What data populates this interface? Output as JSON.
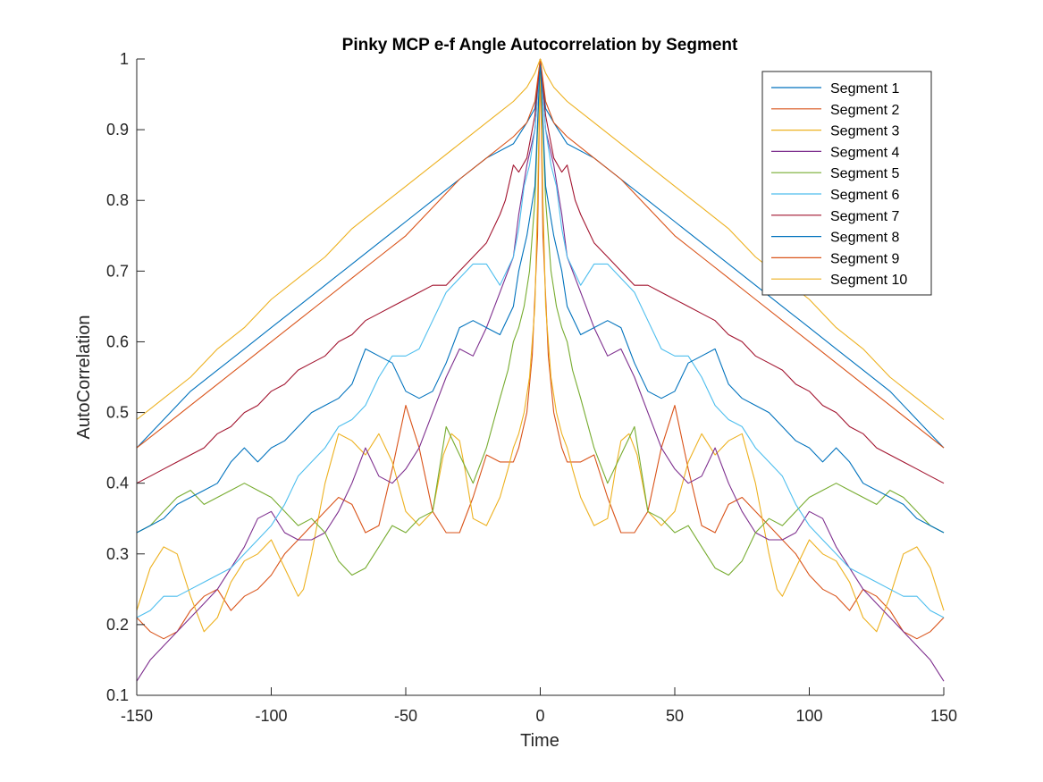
{
  "chart_data": {
    "type": "line",
    "title": "Pinky MCP e-f Angle Autocorrelation by Segment",
    "xlabel": "Time",
    "ylabel": "AutoCorrelation",
    "xlim": [
      -150,
      150
    ],
    "ylim": [
      0.1,
      1
    ],
    "xticks": [
      -150,
      -100,
      -50,
      0,
      50,
      100,
      150
    ],
    "yticks": [
      0.1,
      0.2,
      0.3,
      0.4,
      0.5,
      0.6,
      0.7,
      0.8,
      0.9,
      1
    ],
    "xtick_labels": [
      "-150",
      "-100",
      "-50",
      "0",
      "50",
      "100",
      "150"
    ],
    "ytick_labels": [
      "0.1",
      "0.2",
      "0.3",
      "0.4",
      "0.5",
      "0.6",
      "0.7",
      "0.8",
      "0.9",
      "1"
    ],
    "grid": false,
    "legend_position": "top-right",
    "symmetric_about_zero": true,
    "series": [
      {
        "name": "Segment 1",
        "color": "#0072BD",
        "x": [
          0,
          2,
          5,
          10,
          20,
          30,
          40,
          50,
          60,
          70,
          80,
          90,
          100,
          110,
          120,
          130,
          140,
          150
        ],
        "y": [
          1,
          0.93,
          0.91,
          0.88,
          0.86,
          0.83,
          0.8,
          0.77,
          0.74,
          0.71,
          0.68,
          0.65,
          0.62,
          0.59,
          0.56,
          0.53,
          0.49,
          0.45
        ]
      },
      {
        "name": "Segment 2",
        "color": "#D95319",
        "x": [
          0,
          1,
          3,
          5,
          8,
          10,
          15,
          20,
          25,
          30,
          35,
          40,
          45,
          50,
          55,
          60,
          65,
          70,
          75,
          80,
          85,
          90,
          95,
          100,
          105,
          110,
          115,
          120,
          125,
          130,
          135,
          140,
          145,
          150
        ],
        "y": [
          1,
          0.75,
          0.58,
          0.5,
          0.45,
          0.43,
          0.43,
          0.44,
          0.38,
          0.33,
          0.33,
          0.36,
          0.45,
          0.51,
          0.42,
          0.34,
          0.33,
          0.37,
          0.38,
          0.36,
          0.34,
          0.32,
          0.3,
          0.27,
          0.25,
          0.24,
          0.22,
          0.25,
          0.24,
          0.22,
          0.19,
          0.18,
          0.19,
          0.21
        ]
      },
      {
        "name": "Segment 3",
        "color": "#EDB120",
        "x": [
          0,
          1,
          2,
          4,
          6,
          8,
          10,
          12,
          15,
          20,
          25,
          28,
          30,
          33,
          36,
          40,
          45,
          50,
          55,
          60,
          65,
          70,
          75,
          80,
          85,
          88,
          90,
          95,
          100,
          105,
          110,
          115,
          120,
          125,
          130,
          135,
          140,
          145,
          150
        ],
        "y": [
          1,
          0.8,
          0.65,
          0.55,
          0.5,
          0.47,
          0.45,
          0.42,
          0.38,
          0.34,
          0.35,
          0.42,
          0.46,
          0.47,
          0.44,
          0.36,
          0.34,
          0.36,
          0.43,
          0.47,
          0.44,
          0.46,
          0.47,
          0.4,
          0.3,
          0.25,
          0.24,
          0.28,
          0.32,
          0.3,
          0.29,
          0.26,
          0.21,
          0.19,
          0.24,
          0.3,
          0.31,
          0.28,
          0.22
        ]
      },
      {
        "name": "Segment 4",
        "color": "#7E2F8E",
        "x": [
          0,
          2,
          5,
          8,
          10,
          15,
          20,
          25,
          30,
          35,
          40,
          45,
          50,
          55,
          60,
          65,
          70,
          75,
          80,
          85,
          90,
          95,
          100,
          105,
          110,
          115,
          120,
          125,
          130,
          135,
          140,
          145,
          150
        ],
        "y": [
          1,
          0.9,
          0.85,
          0.78,
          0.72,
          0.67,
          0.62,
          0.58,
          0.59,
          0.55,
          0.5,
          0.45,
          0.42,
          0.4,
          0.41,
          0.45,
          0.4,
          0.36,
          0.33,
          0.32,
          0.32,
          0.33,
          0.36,
          0.35,
          0.31,
          0.28,
          0.25,
          0.23,
          0.21,
          0.19,
          0.17,
          0.15,
          0.12
        ]
      },
      {
        "name": "Segment 5",
        "color": "#77AC30",
        "x": [
          0,
          2,
          4,
          6,
          8,
          10,
          12,
          15,
          20,
          25,
          30,
          35,
          40,
          45,
          50,
          55,
          60,
          65,
          70,
          75,
          80,
          85,
          90,
          95,
          100,
          105,
          110,
          115,
          120,
          125,
          130,
          135,
          140,
          145,
          150
        ],
        "y": [
          1,
          0.8,
          0.7,
          0.65,
          0.62,
          0.6,
          0.56,
          0.52,
          0.45,
          0.4,
          0.44,
          0.48,
          0.36,
          0.35,
          0.33,
          0.34,
          0.31,
          0.28,
          0.27,
          0.29,
          0.33,
          0.35,
          0.34,
          0.36,
          0.38,
          0.39,
          0.4,
          0.39,
          0.38,
          0.37,
          0.39,
          0.38,
          0.36,
          0.34,
          0.33
        ]
      },
      {
        "name": "Segment 6",
        "color": "#4DBEEE",
        "x": [
          0,
          2,
          4,
          6,
          8,
          10,
          15,
          20,
          25,
          30,
          35,
          40,
          45,
          50,
          55,
          60,
          65,
          70,
          75,
          80,
          85,
          90,
          95,
          100,
          105,
          110,
          115,
          120,
          125,
          130,
          135,
          140,
          145,
          150
        ],
        "y": [
          1,
          0.9,
          0.85,
          0.82,
          0.76,
          0.72,
          0.68,
          0.71,
          0.71,
          0.69,
          0.67,
          0.63,
          0.59,
          0.58,
          0.58,
          0.55,
          0.51,
          0.49,
          0.48,
          0.45,
          0.43,
          0.41,
          0.37,
          0.34,
          0.32,
          0.3,
          0.28,
          0.27,
          0.26,
          0.25,
          0.24,
          0.24,
          0.22,
          0.21
        ]
      },
      {
        "name": "Segment 7",
        "color": "#A2142F",
        "x": [
          0,
          2,
          5,
          8,
          10,
          13,
          15,
          20,
          25,
          30,
          35,
          40,
          45,
          50,
          55,
          60,
          65,
          70,
          75,
          80,
          85,
          90,
          95,
          100,
          105,
          110,
          115,
          120,
          125,
          130,
          135,
          140,
          145,
          150
        ],
        "y": [
          1,
          0.92,
          0.86,
          0.84,
          0.85,
          0.8,
          0.78,
          0.74,
          0.72,
          0.7,
          0.68,
          0.68,
          0.67,
          0.66,
          0.65,
          0.64,
          0.63,
          0.61,
          0.6,
          0.58,
          0.57,
          0.56,
          0.54,
          0.53,
          0.51,
          0.5,
          0.48,
          0.47,
          0.45,
          0.44,
          0.43,
          0.42,
          0.41,
          0.4
        ]
      },
      {
        "name": "Segment 8",
        "color": "#0072BD",
        "x": [
          0,
          2,
          5,
          8,
          10,
          15,
          20,
          25,
          30,
          35,
          40,
          45,
          50,
          55,
          60,
          65,
          70,
          75,
          80,
          85,
          90,
          95,
          100,
          105,
          110,
          115,
          120,
          125,
          130,
          135,
          140,
          145,
          150
        ],
        "y": [
          1,
          0.82,
          0.75,
          0.7,
          0.65,
          0.61,
          0.62,
          0.63,
          0.62,
          0.57,
          0.53,
          0.52,
          0.53,
          0.57,
          0.58,
          0.59,
          0.54,
          0.52,
          0.51,
          0.5,
          0.48,
          0.46,
          0.45,
          0.43,
          0.45,
          0.43,
          0.4,
          0.39,
          0.38,
          0.37,
          0.35,
          0.34,
          0.33
        ]
      },
      {
        "name": "Segment 9",
        "color": "#D95319",
        "x": [
          0,
          2,
          5,
          10,
          20,
          30,
          40,
          50,
          60,
          70,
          80,
          90,
          100,
          110,
          120,
          130,
          140,
          150
        ],
        "y": [
          1,
          0.94,
          0.91,
          0.89,
          0.86,
          0.83,
          0.79,
          0.75,
          0.72,
          0.69,
          0.66,
          0.63,
          0.6,
          0.57,
          0.54,
          0.51,
          0.48,
          0.45
        ]
      },
      {
        "name": "Segment 10",
        "color": "#EDB120",
        "x": [
          0,
          2,
          5,
          10,
          20,
          30,
          40,
          50,
          60,
          70,
          80,
          90,
          100,
          110,
          120,
          130,
          140,
          150
        ],
        "y": [
          1,
          0.98,
          0.96,
          0.94,
          0.91,
          0.88,
          0.85,
          0.82,
          0.79,
          0.76,
          0.72,
          0.69,
          0.66,
          0.62,
          0.59,
          0.55,
          0.52,
          0.49
        ]
      }
    ]
  }
}
